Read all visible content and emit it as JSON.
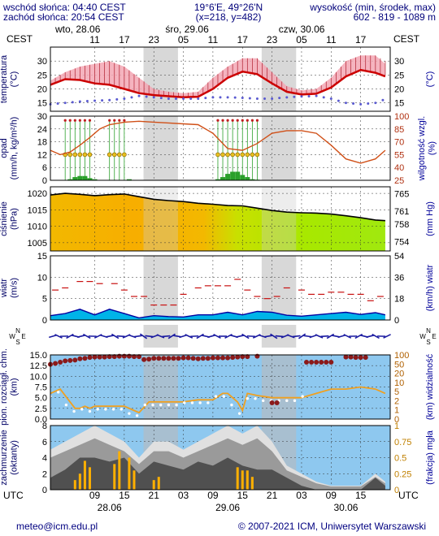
{
  "header": {
    "sunrise": "wschód słońca: 04:40 CEST",
    "sunset": "zachód słońca: 20:54 CEST",
    "coords": "19°6'E, 49°26'N",
    "grid": "(x=218, y=482)",
    "height_label": "wysokość (min, środek, max)",
    "height_values": "602 - 819 - 1089 m"
  },
  "time_axis": {
    "tz_left": "CEST",
    "tz_right": "CEST",
    "utc_left": "UTC",
    "utc_right": "UTC",
    "top_dates": [
      {
        "label": "wto, 28.06",
        "hour": 0
      },
      {
        "label": "śro, 29.06",
        "hour": 24
      },
      {
        "label": "czw, 30.06",
        "hour": 48
      }
    ],
    "top_hour_labels": [
      {
        "label": "11",
        "hour": 9
      },
      {
        "label": "17",
        "hour": 15
      },
      {
        "label": "23",
        "hour": 21
      },
      {
        "label": "05",
        "hour": 27
      },
      {
        "label": "11",
        "hour": 33
      },
      {
        "label": "17",
        "hour": 39
      },
      {
        "label": "23",
        "hour": 45
      },
      {
        "label": "05",
        "hour": 51
      },
      {
        "label": "11",
        "hour": 57
      },
      {
        "label": "17",
        "hour": 63
      }
    ],
    "bottom_hour_labels": [
      {
        "label": "09",
        "hour": 9
      },
      {
        "label": "15",
        "hour": 15
      },
      {
        "label": "21",
        "hour": 21
      },
      {
        "label": "03",
        "hour": 27
      },
      {
        "label": "09",
        "hour": 33
      },
      {
        "label": "15",
        "hour": 39
      },
      {
        "label": "21",
        "hour": 45
      },
      {
        "label": "03",
        "hour": 51
      },
      {
        "label": "09",
        "hour": 57
      },
      {
        "label": "15",
        "hour": 63
      }
    ],
    "bottom_dates": [
      {
        "label": "28.06",
        "hour": 12
      },
      {
        "label": "29.06",
        "hour": 36
      },
      {
        "label": "30.06",
        "hour": 60
      }
    ],
    "night_bands": [
      [
        18.9,
        25.9
      ],
      [
        42.9,
        49.9
      ]
    ]
  },
  "footer": {
    "email": "meteo@icm.edu.pl",
    "copyright": "© 2007-2021 ICM, Uniwersytet Warszawski"
  },
  "colors": {
    "night_band": "#d8d8d8",
    "temp_line": "#cc0000",
    "temp_fill": "#f3a7b4",
    "dewpoint": "#5a5ad0",
    "humidity_line": "#d05018",
    "precip": "#2aa02a",
    "precip_prob": "#e8c020",
    "pressure_line": "#000000",
    "wind_fill": "#00b4e8",
    "gust": "#c81010",
    "cloud_base": "#8b1a1a",
    "visibility": "#f0a020",
    "sky_blue": "#8ec8ef",
    "fog_fraction": "#ffb000",
    "axis_label": "#000066",
    "right_axis_label": "#000099"
  },
  "chart_data": [
    {
      "type": "line",
      "panel": "temperature",
      "ylabel": "temperatura (°C)",
      "ylabel_right": "(°C)",
      "ylim": [
        12,
        35
      ],
      "yticks": [
        "15",
        "20",
        "25",
        "30"
      ],
      "x_hours": [
        0,
        3,
        6,
        9,
        12,
        15,
        18,
        21,
        24,
        27,
        30,
        33,
        36,
        39,
        42,
        45,
        48,
        51,
        54,
        57,
        60,
        63,
        66,
        68
      ],
      "temperature": [
        21.5,
        23.5,
        23.2,
        22,
        21.5,
        20,
        18.5,
        17.8,
        17.4,
        17,
        17.2,
        20,
        24,
        26.2,
        25.3,
        22,
        19,
        18,
        18.3,
        20.5,
        24.5,
        26.8,
        25.8,
        24.5
      ],
      "temp_max": [
        23,
        26,
        28,
        29,
        30,
        28,
        24,
        20,
        19,
        18.5,
        19,
        24,
        28,
        31,
        31,
        26,
        21,
        19.5,
        20,
        24,
        30,
        32,
        32,
        29
      ],
      "dewpoint": [
        14.5,
        15,
        15.5,
        15.8,
        16,
        16.5,
        17.5,
        17,
        16.5,
        16.5,
        16.5,
        17,
        17,
        16.8,
        16.5,
        16.5,
        17,
        17.3,
        17.5,
        16.5,
        15,
        14.5,
        15,
        17
      ]
    },
    {
      "type": "bar",
      "panel": "precipitation",
      "ylabel": "opad (mm/h, kg/m²/h)",
      "ylabel_right": "wilgotność wzgl. (%)",
      "ylim": [
        0,
        30
      ],
      "yticks": [
        "0",
        "6",
        "12",
        "18",
        "24",
        "30"
      ],
      "ylim_right": [
        25,
        100
      ],
      "yticks_right": [
        "25",
        "40",
        "55",
        "70",
        "85",
        "100"
      ],
      "precip_hours": [
        4,
        5,
        6,
        7,
        8,
        9,
        16,
        34,
        35,
        36,
        37,
        38,
        39,
        40,
        41,
        42
      ],
      "precip_values": [
        0.5,
        1.5,
        2,
        2,
        1,
        0.5,
        0.5,
        0.5,
        1.5,
        3,
        4,
        4,
        2.5,
        1.5,
        0.5,
        0.3
      ],
      "precip_prob_hours": [
        3,
        4,
        5,
        6,
        7,
        8,
        12,
        13,
        14,
        15,
        34,
        35,
        36,
        37,
        38,
        39,
        40,
        41,
        42
      ],
      "rh_hours": [
        0,
        2,
        4,
        6,
        8,
        10,
        12,
        15,
        18,
        21,
        24,
        27,
        30,
        33,
        36,
        39,
        42,
        45,
        48,
        51,
        54,
        57,
        60,
        63,
        66,
        68
      ],
      "relative_humidity": [
        60,
        55,
        58,
        66,
        75,
        85,
        90,
        93,
        94,
        93,
        92,
        91,
        90,
        80,
        62,
        60,
        68,
        80,
        83,
        83,
        80,
        66,
        50,
        45,
        50,
        60
      ]
    },
    {
      "type": "area",
      "panel": "pressure",
      "ylabel": "ciśnienie (hPa)",
      "ylabel_right": "(mm Hg)",
      "ylim": [
        1002.5,
        1022
      ],
      "yticks": [
        "1005",
        "1010",
        "1015",
        "1020"
      ],
      "yticks_right": [
        "754",
        "758",
        "761",
        "765"
      ],
      "x_hours": [
        0,
        3,
        6,
        9,
        12,
        15,
        18,
        21,
        24,
        27,
        30,
        33,
        36,
        39,
        42,
        45,
        48,
        51,
        54,
        57,
        60,
        63,
        66,
        68
      ],
      "pressure": [
        1019.5,
        1020,
        1019.7,
        1019.3,
        1019.6,
        1019.8,
        1019,
        1018.2,
        1017.8,
        1017.5,
        1017,
        1016.7,
        1016.3,
        1016.2,
        1015.5,
        1014.8,
        1014.3,
        1014.1,
        1014,
        1013.7,
        1013.2,
        1012.6,
        1011.9,
        1011.7
      ]
    },
    {
      "type": "area",
      "panel": "wind",
      "ylabel": "wiatr (m/s)",
      "ylabel_right": "(km/h) wiatr",
      "ylim": [
        0,
        15
      ],
      "yticks": [
        "0",
        "5",
        "10",
        "15"
      ],
      "yticks_right": [
        "0",
        "18",
        "36",
        "54"
      ],
      "x_hours": [
        0,
        3,
        6,
        9,
        12,
        15,
        18,
        21,
        24,
        27,
        30,
        33,
        36,
        39,
        42,
        45,
        48,
        51,
        54,
        57,
        60,
        63,
        66,
        68
      ],
      "wind_speed": [
        1,
        1.5,
        2.5,
        1.2,
        2.5,
        1.5,
        0.5,
        1,
        0.8,
        0.7,
        1.2,
        1.2,
        1.8,
        1.2,
        2,
        1.8,
        1.1,
        0.9,
        1.2,
        1.5,
        1.8,
        1.3,
        1.7,
        1.2
      ],
      "gust_hours": [
        1,
        3,
        6,
        8,
        10,
        13,
        15,
        17,
        19,
        21,
        23,
        25,
        27,
        30,
        32,
        34,
        36,
        38,
        40,
        42,
        44,
        46,
        48,
        51,
        53,
        55,
        57,
        59,
        61,
        63,
        65,
        67
      ],
      "gust_speed": [
        7,
        7.5,
        9,
        9,
        8.5,
        8.5,
        7,
        5.5,
        5.5,
        3.5,
        3.5,
        3.5,
        6,
        7.5,
        8,
        8,
        8,
        9.5,
        7,
        5.5,
        5,
        5.5,
        7.5,
        7,
        6,
        6,
        6.5,
        6.5,
        6,
        6,
        4.5,
        5.5
      ]
    },
    {
      "type": "scatter",
      "panel": "cloud_base_visibility",
      "ylabel": "pion. rozciągł. chm. (km)",
      "ylabel_right": "(km) widzialność",
      "ylim": [
        0,
        15
      ],
      "yticks": [
        "0.0",
        "2.5",
        "5.0",
        "7.5",
        "10.0",
        "12.5",
        "15.0"
      ],
      "yticks_right": [
        "0",
        "1",
        "2",
        "5",
        "10",
        "20",
        "50",
        "100"
      ],
      "cloud_base_hours": [
        0,
        1,
        2,
        3,
        4,
        5,
        6,
        7,
        8,
        9,
        10,
        11,
        12,
        13,
        14,
        15,
        16,
        17,
        18,
        19,
        20,
        21,
        22,
        23,
        24,
        25,
        26,
        27,
        28,
        29,
        30,
        31,
        32,
        33,
        34,
        35,
        36,
        37,
        38,
        39,
        40,
        42,
        45,
        46,
        52,
        53,
        54,
        55,
        56,
        57,
        60,
        61,
        62,
        63,
        64
      ],
      "cloud_base": [
        12.8,
        13,
        13.3,
        13.6,
        13.7,
        13.8,
        14.1,
        14.2,
        14.4,
        14.5,
        14.5,
        14.5,
        14.6,
        14.6,
        14.7,
        14.7,
        14.7,
        14.6,
        14.6,
        13.9,
        14,
        14.2,
        14.2,
        14.2,
        14.2,
        14.2,
        14.2,
        14.3,
        14.3,
        14.2,
        14.1,
        14.2,
        14.2,
        14.3,
        14.3,
        14.3,
        14.3,
        14.4,
        14.5,
        14.6,
        14.6,
        14.7,
        3.8,
        3.8,
        13.3,
        13.3,
        13.3,
        13.3,
        13.3,
        13.3,
        14.5,
        14.5,
        14.4,
        14.4,
        14.4
      ]
    },
    {
      "type": "area",
      "panel": "cloud_cover",
      "ylabel": "zachmurzenie (oktanty)",
      "ylabel_right": "(frakcja) mgła",
      "ylim": [
        0,
        8
      ],
      "yticks": [
        "0",
        "2",
        "4",
        "6",
        "8"
      ],
      "yticks_right": [
        "0",
        "0.25",
        "0.5",
        "0.75",
        "1"
      ],
      "x_hours": [
        0,
        3,
        6,
        9,
        12,
        15,
        18,
        21,
        24,
        27,
        30,
        33,
        36,
        39,
        42,
        45,
        48,
        51,
        54,
        57,
        60,
        63,
        66,
        68
      ],
      "total_cloud": [
        5,
        6,
        7,
        8,
        7,
        6,
        4,
        6,
        6,
        5,
        6,
        7,
        8,
        7,
        8,
        6,
        3,
        2,
        1,
        0.5,
        0.5,
        0.5,
        2,
        1
      ],
      "low_cloud": [
        1.5,
        2.5,
        4,
        4,
        3.5,
        4,
        2,
        3.5,
        3,
        2.5,
        3.5,
        3,
        4,
        3,
        2.5,
        2.5,
        1.5,
        0.5,
        0,
        0,
        0,
        0,
        1.5,
        0.5
      ],
      "fog_hours": [
        5,
        6,
        7,
        8,
        13,
        14,
        16,
        17,
        21,
        22,
        38,
        39,
        40,
        41
      ],
      "fog_fraction": [
        0.15,
        0.25,
        0.45,
        0.35,
        0.4,
        0.6,
        0.5,
        0.3,
        0.15,
        0.2,
        0.35,
        0.3,
        0.3,
        0.2
      ]
    }
  ]
}
